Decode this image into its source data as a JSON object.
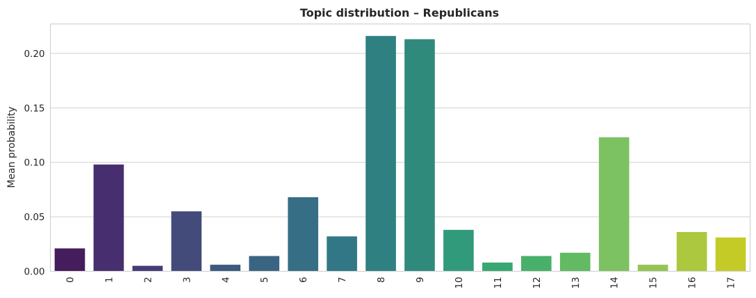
{
  "chart_data": {
    "type": "bar",
    "title": "Topic distribution – Republicans",
    "xlabel": "",
    "ylabel": "Mean probability",
    "categories": [
      "0",
      "1",
      "2",
      "3",
      "4",
      "5",
      "6",
      "7",
      "8",
      "9",
      "10",
      "11",
      "12",
      "13",
      "14",
      "15",
      "16",
      "17"
    ],
    "values": [
      0.021,
      0.098,
      0.005,
      0.055,
      0.006,
      0.014,
      0.068,
      0.032,
      0.216,
      0.213,
      0.038,
      0.008,
      0.014,
      0.017,
      0.123,
      0.006,
      0.036,
      0.031
    ],
    "ylim": [
      0,
      0.227
    ],
    "yticks": [
      0.0,
      0.05,
      0.1,
      0.15,
      0.2
    ],
    "ytick_labels": [
      "0.00",
      "0.05",
      "0.10",
      "0.15",
      "0.20"
    ],
    "grid": "horizontal",
    "palette": "viridis",
    "colors": [
      "#461d5c",
      "#472f6f",
      "#453c78",
      "#434b7b",
      "#3e5a7f",
      "#3a6582",
      "#356e85",
      "#327785",
      "#2f8081",
      "#2f8a7c",
      "#319a7b",
      "#38a872",
      "#48b06a",
      "#62ba63",
      "#7cc162",
      "#96c454",
      "#abc83e",
      "#c4cb27"
    ]
  }
}
